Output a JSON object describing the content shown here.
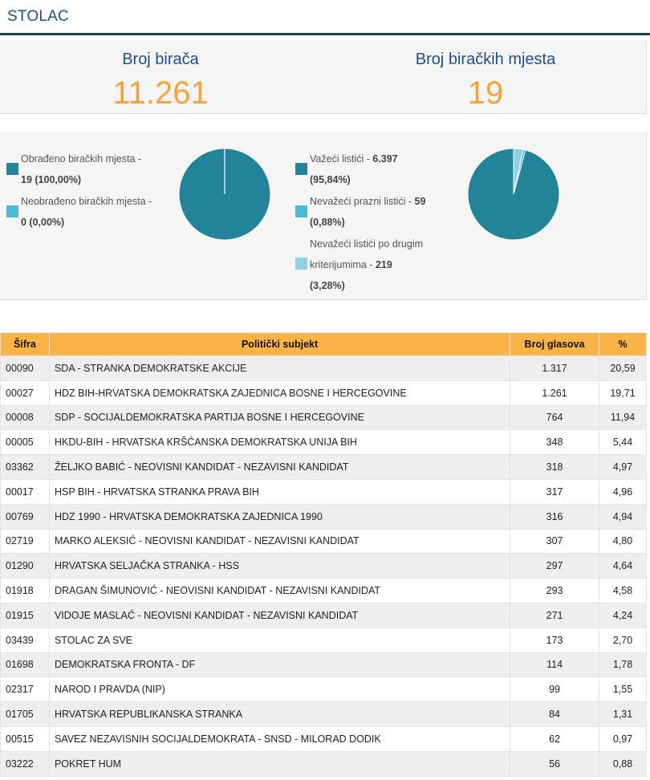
{
  "header": {
    "title": "STOLAC"
  },
  "stats": [
    {
      "label": "Broj birača",
      "value": "11.261"
    },
    {
      "label": "Broj biračkih mjesta",
      "value": "19"
    }
  ],
  "legend_left": [
    {
      "line1": "Obrađeno biračkih mjesta -",
      "line2_bold": "19 (100,00%)",
      "color": "#238398"
    },
    {
      "line1": "Neobrađeno biračkih mjesta -",
      "line2_bold": "0 (0,00%)",
      "color": "#4bb8d8"
    }
  ],
  "legend_right": [
    {
      "line1_pre": "Važeći listići - ",
      "line1_bold": "6.397",
      "line2_bold": "(95,84%)",
      "color": "#238398"
    },
    {
      "line1_pre": "Nevažeći prazni listići - ",
      "line1_bold": "59",
      "line2_bold": "(0,88%)",
      "color": "#4bb8d8"
    },
    {
      "line1_pre": "Nevažeći listići po drugim",
      "line2_pre": "kriterijumima - ",
      "line2_bold": "219",
      "line3_bold": "(3,28%)",
      "color": "#8fd0e3"
    }
  ],
  "chart_data": [
    {
      "type": "pie",
      "categories": [
        "Obrađeno biračkih mjesta",
        "Neobrađeno biračkih mjesta"
      ],
      "values": [
        100.0,
        0.0
      ],
      "colors": [
        "#238398",
        "#4bb8d8"
      ]
    },
    {
      "type": "pie",
      "categories": [
        "Važeći listići",
        "Nevažeći prazni listići",
        "Nevažeći listići po drugim kriterijumima"
      ],
      "values": [
        95.84,
        0.88,
        3.28
      ],
      "colors": [
        "#238398",
        "#4bb8d8",
        "#8fd0e3"
      ]
    }
  ],
  "table": {
    "headers": [
      "Šifra",
      "Politički subjekt",
      "Broj glasova",
      "%"
    ],
    "rows": [
      [
        "00090",
        "SDA - STRANKA DEMOKRATSKE AKCIJE",
        "1.317",
        "20,59"
      ],
      [
        "00027",
        "HDZ BIH-HRVATSKA DEMOKRATSKA ZAJEDNICA BOSNE I HERCEGOVINE",
        "1.261",
        "19,71"
      ],
      [
        "00008",
        "SDP - SOCIJALDEMOKRATSKA PARTIJA BOSNE I HERCEGOVINE",
        "764",
        "11,94"
      ],
      [
        "00005",
        "HKDU-BIH - HRVATSKA KRŠĆANSKA DEMOKRATSKA UNIJA BIH",
        "348",
        "5,44"
      ],
      [
        "03362",
        "ŽELJKO BABIĆ - NEOVISNI KANDIDAT - NEZAVISNI KANDIDAT",
        "318",
        "4,97"
      ],
      [
        "00017",
        "HSP BIH - HRVATSKA STRANKA PRAVA BIH",
        "317",
        "4,96"
      ],
      [
        "00769",
        "HDZ 1990 - HRVATSKA DEMOKRATSKA ZAJEDNICA 1990",
        "316",
        "4,94"
      ],
      [
        "02719",
        "MARKO ALEKSIĆ - NEOVISNI KANDIDAT - NEZAVISNI KANDIDAT",
        "307",
        "4,80"
      ],
      [
        "01290",
        "HRVATSKA SELJAČKA STRANKA - HSS",
        "297",
        "4,64"
      ],
      [
        "01918",
        "DRAGAN ŠIMUNOVIĆ - NEOVISNI KANDIDAT - NEZAVISNI KANDIDAT",
        "293",
        "4,58"
      ],
      [
        "01915",
        "VIDOJE MASLAĆ - NEOVISNI KANDIDAT - NEZAVISNI KANDIDAT",
        "271",
        "4,24"
      ],
      [
        "03439",
        "STOLAC ZA SVE",
        "173",
        "2,70"
      ],
      [
        "01698",
        "DEMOKRATSKA FRONTA - DF",
        "114",
        "1,78"
      ],
      [
        "02317",
        "NAROD I PRAVDA (NIP)",
        "99",
        "1,55"
      ],
      [
        "01705",
        "HRVATSKA REPUBLIKANSKA STRANKA",
        "84",
        "1,31"
      ],
      [
        "00515",
        "SAVEZ NEZAVISNIH SOCIJALDEMOKRATA - SNSD - MILORAD DODIK",
        "62",
        "0,97"
      ],
      [
        "03222",
        "POKRET HUM",
        "56",
        "0,88"
      ]
    ]
  }
}
